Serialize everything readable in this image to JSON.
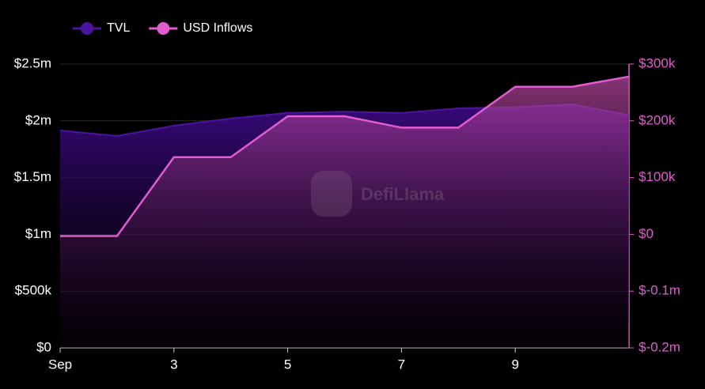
{
  "chart_data": {
    "type": "line",
    "watermark": "DefiLlama",
    "x": [
      1,
      2,
      3,
      4,
      5,
      6,
      7,
      8,
      9,
      10,
      11
    ],
    "xlim": [
      1,
      11
    ],
    "xticks": [
      {
        "value": 1,
        "label": "Sep"
      },
      3,
      5,
      7,
      9
    ],
    "series": [
      {
        "name": "TVL",
        "color": "#4a14a0",
        "axis": "y",
        "values": [
          1915000,
          1866000,
          1957000,
          2020000,
          2070000,
          2080000,
          2070000,
          2110000,
          2120000,
          2145000,
          2050000
        ]
      },
      {
        "name": "USD Inflows",
        "color": "#e05ccf",
        "axis": "y2",
        "values": [
          -3000,
          -3000,
          136000,
          136000,
          208000,
          208000,
          188000,
          188000,
          260000,
          260000,
          278000
        ]
      }
    ],
    "ylim": [
      0,
      2500000
    ],
    "yticks": [
      {
        "value": 0,
        "label": "$0"
      },
      {
        "value": 500000,
        "label": "$500k"
      },
      {
        "value": 1000000,
        "label": "$1m"
      },
      {
        "value": 1500000,
        "label": "$1.5m"
      },
      {
        "value": 2000000,
        "label": "$2m"
      },
      {
        "value": 2500000,
        "label": "$2.5m"
      }
    ],
    "y2lim": [
      -200000,
      300000
    ],
    "y2ticks": [
      {
        "value": -200000,
        "label": "$-0.2m"
      },
      {
        "value": -100000,
        "label": "$-0.1m"
      },
      {
        "value": 0,
        "label": "$0"
      },
      {
        "value": 100000,
        "label": "$100k"
      },
      {
        "value": 200000,
        "label": "$200k"
      },
      {
        "value": 300000,
        "label": "$300k"
      }
    ],
    "grid": true,
    "legend": "top-left"
  }
}
